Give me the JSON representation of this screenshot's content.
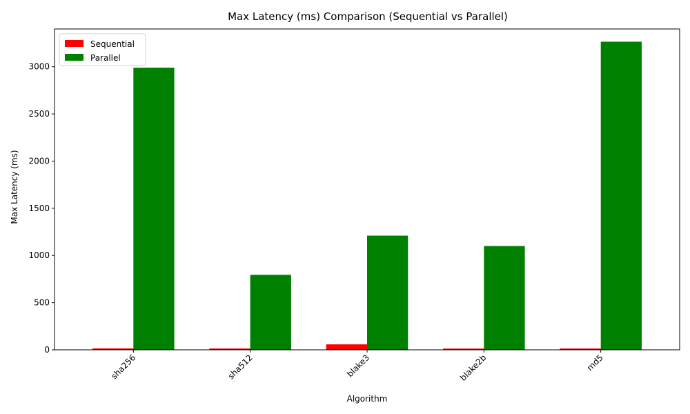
{
  "chart_data": {
    "type": "bar",
    "title": "Max Latency (ms) Comparison (Sequential vs Parallel)",
    "xlabel": "Algorithm",
    "ylabel": "Max Latency (ms)",
    "categories": [
      "sha256",
      "sha512",
      "blake3",
      "blake2b",
      "md5"
    ],
    "series": [
      {
        "name": "Sequential",
        "color": "#ff0000",
        "values": [
          15,
          14,
          58,
          13,
          14
        ]
      },
      {
        "name": "Parallel",
        "color": "#008000",
        "values": [
          2990,
          795,
          1210,
          1100,
          3265
        ]
      }
    ],
    "ylim": [
      0,
      3400
    ],
    "yticks": [
      0,
      500,
      1000,
      1500,
      2000,
      2500,
      3000
    ],
    "grid": false,
    "legend_position": "top-left",
    "xtick_rotation": 45
  }
}
